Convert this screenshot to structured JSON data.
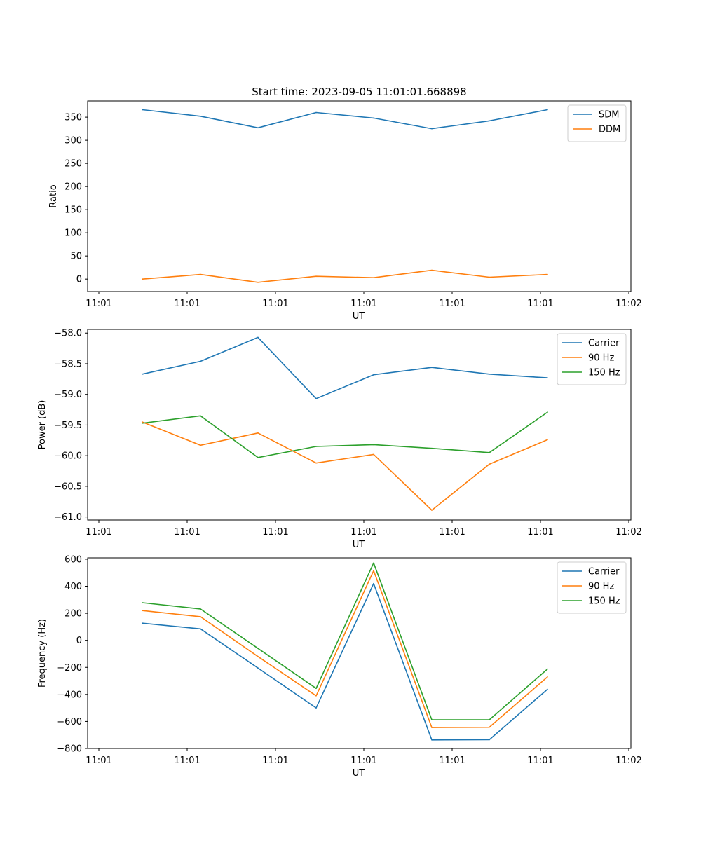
{
  "chart_data": [
    {
      "type": "line",
      "title": "Start time: 2023-09-05 11:01:01.668898",
      "xlabel": "UT",
      "ylabel": "Ratio",
      "x_tick_labels": [
        "11:01",
        "11:01",
        "11:01",
        "11:01",
        "11:01",
        "11:01",
        "11:01"
      ],
      "x_tick_last": "11:02",
      "ylim": [
        -27,
        385
      ],
      "yticks": [
        0,
        50,
        100,
        150,
        200,
        250,
        300,
        350
      ],
      "ytick_labels": [
        "0",
        "50",
        "100",
        "150",
        "200",
        "250",
        "300",
        "350"
      ],
      "legend_position": "top-right",
      "series": [
        {
          "name": "SDM",
          "color": "#1f77b4",
          "values": [
            366,
            352,
            327,
            360,
            348,
            325,
            342,
            366
          ]
        },
        {
          "name": "DDM",
          "color": "#ff7f0e",
          "values": [
            0,
            10,
            -7,
            6,
            3,
            19,
            4,
            10
          ]
        }
      ]
    },
    {
      "type": "line",
      "title": "",
      "xlabel": "UT",
      "ylabel": "Power (dB)",
      "x_tick_labels": [
        "11:01",
        "11:01",
        "11:01",
        "11:01",
        "11:01",
        "11:01",
        "11:01"
      ],
      "x_tick_last": "11:02",
      "ylim": [
        -61.05,
        -57.94
      ],
      "yticks": [
        -58.0,
        -58.5,
        -59.0,
        -59.5,
        -60.0,
        -60.5,
        -61.0
      ],
      "ytick_labels": [
        "−58.0",
        "−58.5",
        "−59.0",
        "−59.5",
        "−60.0",
        "−60.5",
        "−61.0"
      ],
      "legend_position": "top-right",
      "series": [
        {
          "name": "Carrier",
          "color": "#1f77b4",
          "values": [
            -58.67,
            -58.46,
            -58.07,
            -59.07,
            -58.68,
            -58.56,
            -58.67,
            -58.73
          ]
        },
        {
          "name": "90 Hz",
          "color": "#ff7f0e",
          "values": [
            -59.45,
            -59.83,
            -59.63,
            -60.12,
            -59.98,
            -60.89,
            -60.14,
            -59.74
          ]
        },
        {
          "name": "150 Hz",
          "color": "#2ca02c",
          "values": [
            -59.47,
            -59.35,
            -60.03,
            -59.85,
            -59.82,
            -59.88,
            -59.95,
            -59.29
          ]
        }
      ]
    },
    {
      "type": "line",
      "title": "",
      "xlabel": "UT",
      "ylabel": "Frequency (Hz)",
      "x_tick_labels": [
        "11:01",
        "11:01",
        "11:01",
        "11:01",
        "11:01",
        "11:01",
        "11:01"
      ],
      "x_tick_last": "11:02",
      "ylim": [
        -800,
        610
      ],
      "yticks": [
        600,
        400,
        200,
        0,
        -200,
        -400,
        -600,
        -800
      ],
      "ytick_labels": [
        "600",
        "400",
        "200",
        "0",
        "−200",
        "−400",
        "−600",
        "−800"
      ],
      "legend_position": "top-right",
      "series": [
        {
          "name": "Carrier",
          "color": "#1f77b4",
          "values": [
            127,
            85,
            -205,
            -500,
            420,
            -737,
            -735,
            -362
          ]
        },
        {
          "name": "90 Hz",
          "color": "#ff7f0e",
          "values": [
            220,
            175,
            -120,
            -410,
            515,
            -645,
            -643,
            -270
          ]
        },
        {
          "name": "150 Hz",
          "color": "#2ca02c",
          "values": [
            278,
            232,
            -60,
            -355,
            572,
            -588,
            -588,
            -212
          ]
        }
      ]
    }
  ]
}
